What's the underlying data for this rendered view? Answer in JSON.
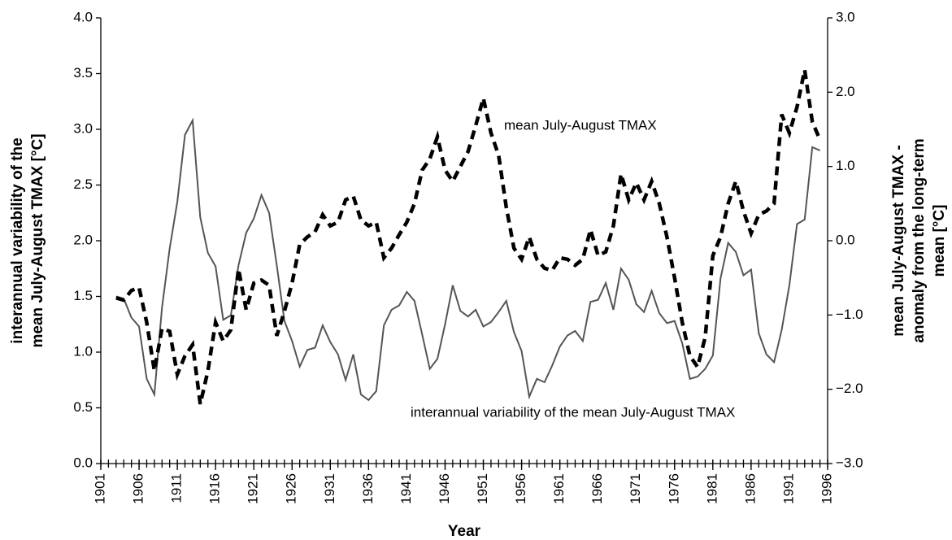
{
  "chart_data": {
    "type": "line",
    "x_label": "Year",
    "y_label": [
      "interannual variability of the",
      "mean July-August TMAX [°C]"
    ],
    "y2_label": [
      "mean July-August TMAX -",
      "anomaly from the long-term",
      "mean [°C]"
    ],
    "annotations": [
      "mean July-August TMAX",
      "interannual variability of the mean July-August TMAX"
    ],
    "xlim": [
      1901,
      1996
    ],
    "xticks": [
      1901,
      1906,
      1911,
      1916,
      1921,
      1926,
      1931,
      1936,
      1941,
      1946,
      1951,
      1956,
      1961,
      1966,
      1971,
      1976,
      1981,
      1986,
      1991,
      1996
    ],
    "ylim": [
      0,
      4
    ],
    "yticks": [
      {
        "value": 0,
        "label": "0.0"
      },
      {
        "value": 0.5,
        "label": "0.5"
      },
      {
        "value": 1,
        "label": "1.0"
      },
      {
        "value": 1.5,
        "label": "1.5"
      },
      {
        "value": 2,
        "label": "2.0"
      },
      {
        "value": 2.5,
        "label": "2.5"
      },
      {
        "value": 3,
        "label": "3.0"
      },
      {
        "value": 3.5,
        "label": "3.5"
      },
      {
        "value": 4,
        "label": "4.0"
      }
    ],
    "y2lim": [
      -3,
      3
    ],
    "y2ticks": [
      {
        "value": -3,
        "label": "−3.0"
      },
      {
        "value": -2,
        "label": "−2.0"
      },
      {
        "value": -1,
        "label": "−1.0"
      },
      {
        "value": 0,
        "label": "0.0"
      },
      {
        "value": 1,
        "label": "1.0"
      },
      {
        "value": 2,
        "label": "2.0"
      },
      {
        "value": 3,
        "label": "3.0"
      }
    ],
    "x": [
      1903,
      1904,
      1905,
      1906,
      1907,
      1908,
      1909,
      1910,
      1911,
      1912,
      1913,
      1914,
      1915,
      1916,
      1917,
      1918,
      1919,
      1920,
      1921,
      1922,
      1923,
      1924,
      1925,
      1926,
      1927,
      1928,
      1929,
      1930,
      1931,
      1932,
      1933,
      1934,
      1935,
      1936,
      1937,
      1938,
      1939,
      1940,
      1941,
      1942,
      1943,
      1944,
      1945,
      1946,
      1947,
      1948,
      1949,
      1950,
      1951,
      1952,
      1953,
      1954,
      1955,
      1956,
      1957,
      1958,
      1959,
      1960,
      1961,
      1962,
      1963,
      1964,
      1965,
      1966,
      1967,
      1968,
      1969,
      1970,
      1971,
      1972,
      1973,
      1974,
      1975,
      1976,
      1977,
      1978,
      1979,
      1980,
      1981,
      1982,
      1983,
      1984,
      1985,
      1986,
      1987,
      1988,
      1989,
      1990,
      1991,
      1992,
      1993,
      1994,
      1995
    ],
    "series": [
      {
        "color": "#555555",
        "style": "solid",
        "axis": "y",
        "values": [
          1.5,
          1.48,
          1.31,
          1.23,
          0.76,
          0.62,
          1.4,
          1.93,
          2.35,
          2.95,
          3.08,
          2.21,
          1.89,
          1.77,
          1.29,
          1.33,
          1.78,
          2.07,
          2.2,
          2.41,
          2.25,
          1.78,
          1.28,
          1.1,
          0.87,
          1.02,
          1.04,
          1.24,
          1.09,
          0.98,
          0.75,
          0.98,
          0.62,
          0.57,
          0.65,
          1.24,
          1.38,
          1.42,
          1.54,
          1.46,
          1.16,
          0.85,
          0.94,
          1.25,
          1.6,
          1.37,
          1.32,
          1.38,
          1.23,
          1.27,
          1.36,
          1.46,
          1.18,
          1.01,
          0.6,
          0.76,
          0.73,
          0.88,
          1.05,
          1.15,
          1.19,
          1.1,
          1.45,
          1.47,
          1.62,
          1.38,
          1.75,
          1.65,
          1.43,
          1.36,
          1.55,
          1.35,
          1.26,
          1.28,
          1.08,
          0.76,
          0.78,
          0.85,
          0.97,
          1.66,
          1.98,
          1.9,
          1.69,
          1.74,
          1.17,
          0.98,
          0.91,
          1.2,
          1.6,
          2.15,
          2.19,
          2.84,
          2.81
        ]
      },
      {
        "color": "#000000",
        "style": "dashed",
        "axis": "y2",
        "values": [
          -0.77,
          -0.8,
          -0.67,
          -0.63,
          -1.1,
          -1.75,
          -1.18,
          -1.22,
          -1.8,
          -1.55,
          -1.4,
          -2.2,
          -1.75,
          -1.1,
          -1.35,
          -1.2,
          -0.38,
          -0.93,
          -0.57,
          -0.53,
          -0.6,
          -1.28,
          -0.95,
          -0.57,
          -0.05,
          0.05,
          0.12,
          0.35,
          0.2,
          0.25,
          0.55,
          0.6,
          0.28,
          0.2,
          0.25,
          -0.23,
          -0.1,
          0.08,
          0.25,
          0.5,
          0.95,
          1.1,
          1.4,
          0.95,
          0.8,
          1.0,
          1.2,
          1.55,
          1.92,
          1.45,
          1.15,
          0.45,
          -0.1,
          -0.25,
          0.05,
          -0.25,
          -0.37,
          -0.4,
          -0.23,
          -0.25,
          -0.33,
          -0.25,
          0.15,
          -0.2,
          -0.15,
          0.2,
          0.9,
          0.55,
          0.78,
          0.55,
          0.8,
          0.5,
          0.05,
          -0.5,
          -1.1,
          -1.55,
          -1.7,
          -1.3,
          -0.2,
          0.05,
          0.5,
          0.8,
          0.4,
          0.1,
          0.35,
          0.4,
          0.5,
          1.7,
          1.45,
          1.8,
          2.3,
          1.6,
          1.36
        ]
      }
    ]
  }
}
